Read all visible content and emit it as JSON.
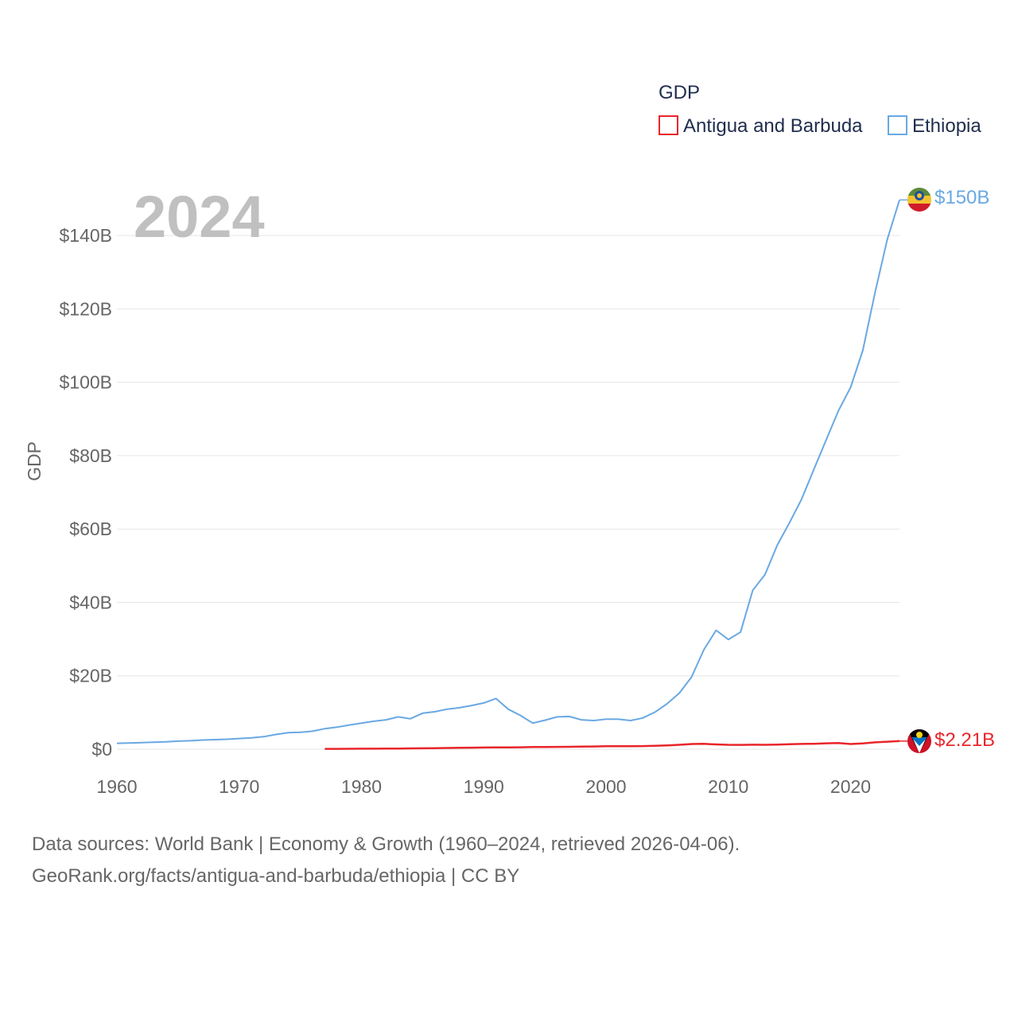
{
  "chart_data": {
    "type": "line",
    "year_label": "2024",
    "legend": {
      "title": "GDP",
      "items": [
        "Antigua and Barbuda",
        "Ethiopia"
      ]
    },
    "ylabel": "GDP",
    "xlabel": "",
    "xlim": [
      1960,
      2024
    ],
    "ylim": [
      0,
      150
    ],
    "x_ticks": [
      "1960",
      "1970",
      "1980",
      "1990",
      "2000",
      "2010",
      "2020"
    ],
    "y_ticks": [
      "$0",
      "$20B",
      "$40B",
      "$60B",
      "$80B",
      "$100B",
      "$120B",
      "$140B"
    ],
    "y_tick_values": [
      0,
      20,
      40,
      60,
      80,
      100,
      120,
      140
    ],
    "series": [
      {
        "name": "Ethiopia",
        "color": "#6aa8e3",
        "end_label": "$150B",
        "x": [
          1960,
          1961,
          1962,
          1963,
          1964,
          1965,
          1966,
          1967,
          1968,
          1969,
          1970,
          1971,
          1972,
          1973,
          1974,
          1975,
          1976,
          1977,
          1978,
          1979,
          1980,
          1981,
          1982,
          1983,
          1984,
          1985,
          1986,
          1987,
          1988,
          1989,
          1990,
          1991,
          1992,
          1993,
          1994,
          1995,
          1996,
          1997,
          1998,
          1999,
          2000,
          2001,
          2002,
          2003,
          2004,
          2005,
          2006,
          2007,
          2008,
          2009,
          2010,
          2011,
          2012,
          2013,
          2014,
          2015,
          2016,
          2017,
          2018,
          2019,
          2020,
          2021,
          2022,
          2023,
          2024
        ],
        "values": [
          1.6,
          1.7,
          1.8,
          1.9,
          2.0,
          2.2,
          2.3,
          2.5,
          2.6,
          2.7,
          2.9,
          3.1,
          3.4,
          4.0,
          4.5,
          4.6,
          4.9,
          5.6,
          6.0,
          6.6,
          7.1,
          7.6,
          8.0,
          8.8,
          8.3,
          9.8,
          10.2,
          10.9,
          11.3,
          11.9,
          12.6,
          13.8,
          10.9,
          9.2,
          7.1,
          7.9,
          8.8,
          8.9,
          8.0,
          7.8,
          8.2,
          8.2,
          7.8,
          8.5,
          10.1,
          12.4,
          15.3,
          19.7,
          27.1,
          32.4,
          29.9,
          31.9,
          43.3,
          47.6,
          55.6,
          61.7,
          68.2,
          76.3,
          84.3,
          92.2,
          98.6,
          108.7,
          124.5,
          138.9,
          149.7
        ]
      },
      {
        "name": "Antigua and Barbuda",
        "color": "#e8262b",
        "end_label": "$2.21B",
        "x": [
          1977,
          1978,
          1979,
          1980,
          1981,
          1982,
          1983,
          1984,
          1985,
          1986,
          1987,
          1988,
          1989,
          1990,
          1991,
          1992,
          1993,
          1994,
          1995,
          1996,
          1997,
          1998,
          1999,
          2000,
          2001,
          2002,
          2003,
          2004,
          2005,
          2006,
          2007,
          2008,
          2009,
          2010,
          2011,
          2012,
          2013,
          2014,
          2015,
          2016,
          2017,
          2018,
          2019,
          2020,
          2021,
          2022,
          2023,
          2024
        ],
        "values": [
          0.08,
          0.09,
          0.11,
          0.13,
          0.14,
          0.16,
          0.18,
          0.21,
          0.24,
          0.28,
          0.32,
          0.37,
          0.41,
          0.46,
          0.48,
          0.5,
          0.53,
          0.58,
          0.58,
          0.62,
          0.66,
          0.7,
          0.74,
          0.83,
          0.8,
          0.81,
          0.85,
          0.92,
          1.02,
          1.2,
          1.4,
          1.45,
          1.3,
          1.2,
          1.16,
          1.22,
          1.2,
          1.26,
          1.36,
          1.44,
          1.47,
          1.61,
          1.69,
          1.41,
          1.56,
          1.87,
          2.03,
          2.21
        ]
      }
    ]
  },
  "footer": {
    "line1": "Data sources: World Bank | Economy & Growth (1960–2024, retrieved 2026-04-06).",
    "line2": "GeoRank.org/facts/antigua-and-barbuda/ethiopia | CC BY"
  }
}
